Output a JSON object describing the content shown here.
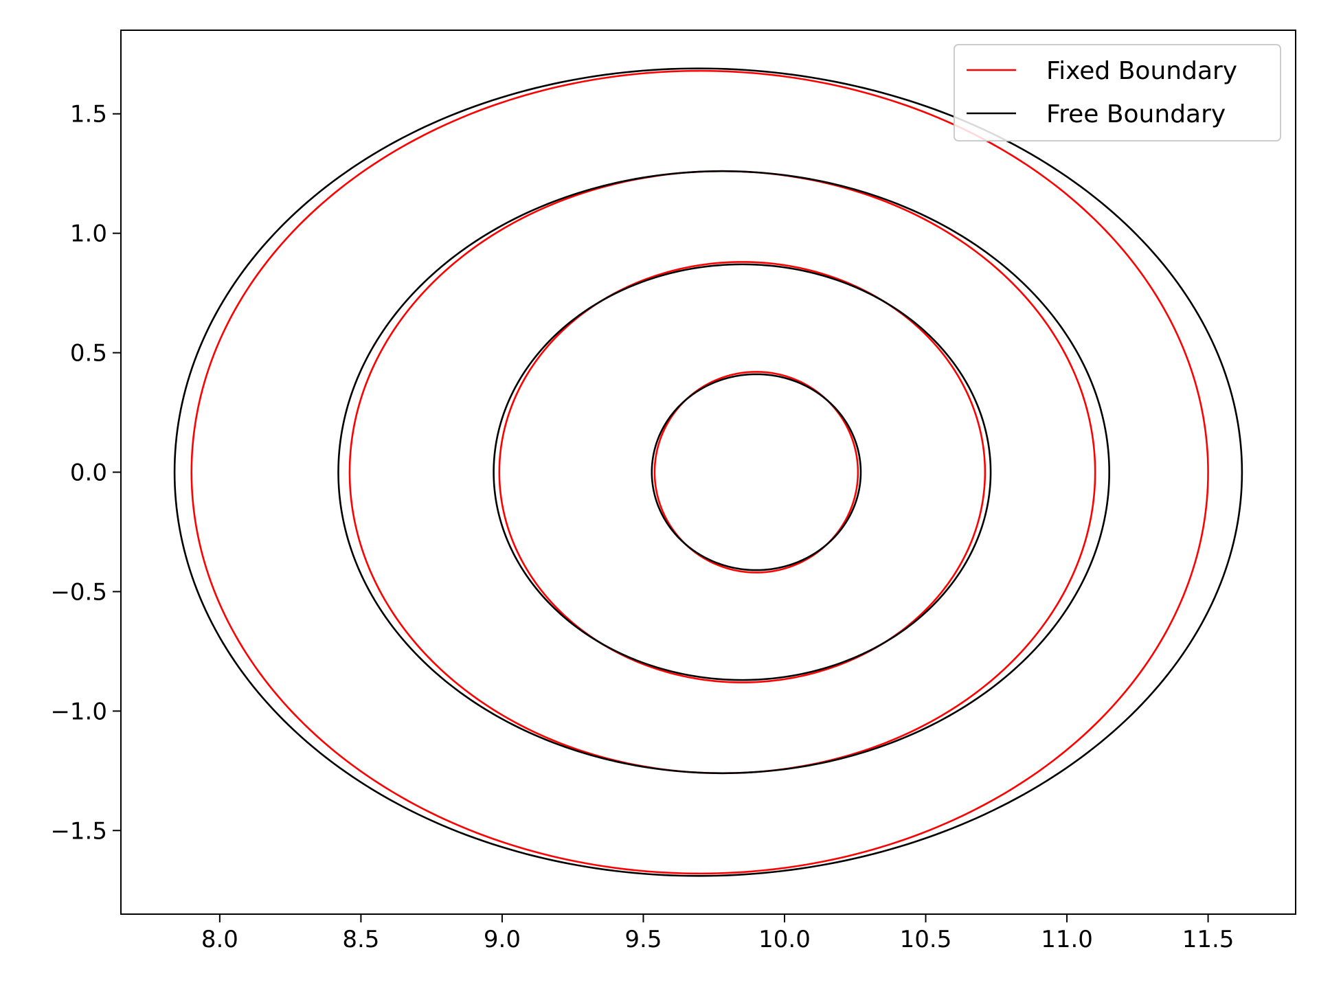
{
  "chart_data": {
    "type": "line",
    "title": "",
    "xlabel": "",
    "ylabel": "",
    "xlim": [
      7.65,
      11.81
    ],
    "ylim": [
      -1.85,
      1.85
    ],
    "xticks": [
      "8.0",
      "8.5",
      "9.0",
      "9.5",
      "10.0",
      "10.5",
      "11.0",
      "11.5"
    ],
    "xtick_values": [
      8.0,
      8.5,
      9.0,
      9.5,
      10.0,
      10.5,
      11.0,
      11.5
    ],
    "yticks": [
      "−1.5",
      "−1.0",
      "−0.5",
      "0.0",
      "0.5",
      "1.0",
      "1.5"
    ],
    "ytick_values": [
      -1.5,
      -1.0,
      -0.5,
      0.0,
      0.5,
      1.0,
      1.5
    ],
    "legend_position": "top-right",
    "grid": false,
    "series": [
      {
        "name": "Fixed Boundary",
        "color": "#ff0000",
        "contours": [
          {
            "center_x": 9.9,
            "x_min": 9.54,
            "x_max": 10.26,
            "y_max": 0.42,
            "y_min": -0.42
          },
          {
            "center_x": 9.85,
            "x_min": 8.99,
            "x_max": 10.71,
            "y_max": 0.88,
            "y_min": -0.88
          },
          {
            "center_x": 9.78,
            "x_min": 8.46,
            "x_max": 11.1,
            "y_max": 1.26,
            "y_min": -1.26
          },
          {
            "center_x": 9.7,
            "x_min": 7.9,
            "x_max": 11.5,
            "y_max": 1.68,
            "y_min": -1.68
          }
        ]
      },
      {
        "name": "Free Boundary",
        "color": "#000000",
        "contours": [
          {
            "x_min": 9.53,
            "x_max": 10.27,
            "x_top": 9.9,
            "y_max": 0.41,
            "y_min": -0.41
          },
          {
            "x_min": 8.97,
            "x_max": 10.73,
            "x_top": 9.85,
            "y_max": 0.87,
            "y_min": -0.87
          },
          {
            "x_min": 8.42,
            "x_max": 11.15,
            "x_top": 9.78,
            "y_max": 1.26,
            "y_min": -1.26
          },
          {
            "x_min": 7.84,
            "x_max": 11.62,
            "x_top": 9.7,
            "y_max": 1.69,
            "y_min": -1.69
          }
        ]
      }
    ]
  }
}
